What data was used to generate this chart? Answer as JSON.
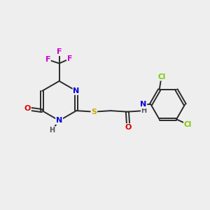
{
  "background_color": "#eeeeee",
  "bond_color": "#2a2a2a",
  "atom_colors": {
    "F": "#cc00cc",
    "N": "#0000dd",
    "O": "#dd0000",
    "S": "#ccaa00",
    "Cl": "#7ec800",
    "C": "#2a2a2a",
    "H": "#555555"
  },
  "figsize": [
    3.0,
    3.0
  ],
  "dpi": 100
}
